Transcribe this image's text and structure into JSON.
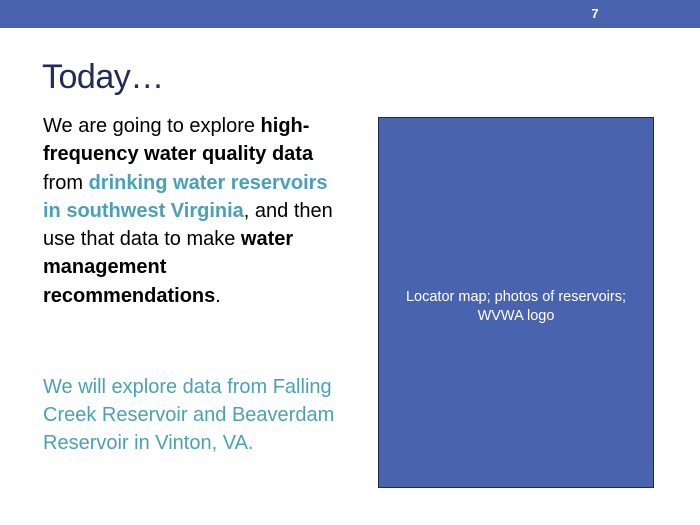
{
  "slide": {
    "number": "7",
    "title": "Today…"
  },
  "intro": {
    "t1": "We are going to explore ",
    "b1": "high-frequency water quality data",
    "t2": " from ",
    "h1": "drinking water reservoirs in southwest Virginia",
    "t3": ", and then use that data to make ",
    "b2": "water management recommendations",
    "t4": "."
  },
  "second_paragraph": "We will explore data from Falling Creek Reservoir and Beaverdam Reservoir in Vinton, VA.",
  "placeholder": {
    "text": "Locator map; photos of reservoirs; WVWA logo"
  },
  "colors": {
    "bar": "#4a63ae",
    "title": "#232a5c",
    "accent": "#4ba1b4"
  }
}
